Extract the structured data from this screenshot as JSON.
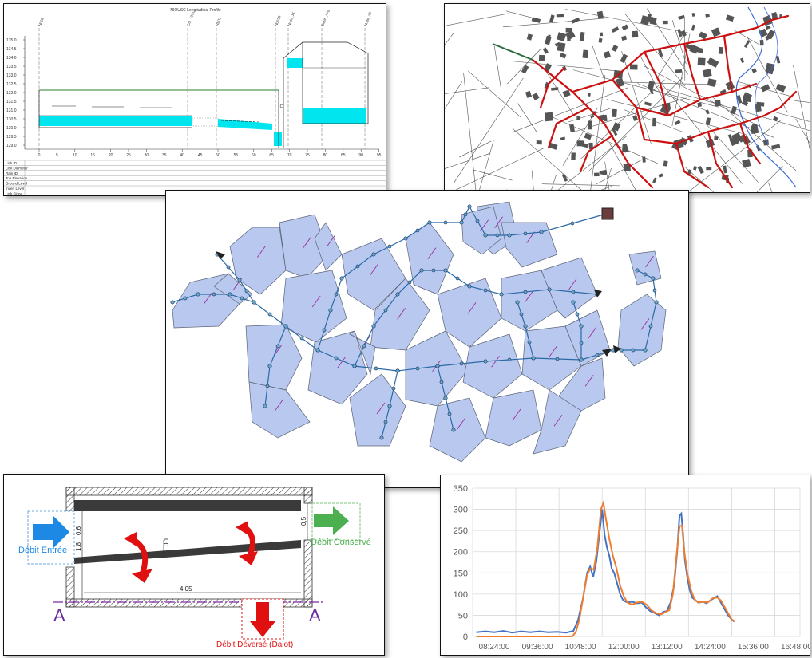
{
  "profile": {
    "title": "NIOUSC Longitudinal Profile",
    "y_ticks": [
      "135.0",
      "134.5",
      "134.0",
      "133.5",
      "133.0",
      "132.5",
      "132.0",
      "131.5",
      "131.0",
      "130.5",
      "130.0",
      "129.5",
      "129.0"
    ],
    "x_ticks": [
      "0",
      "5",
      "10",
      "15",
      "20",
      "25",
      "30",
      "35",
      "40",
      "45",
      "50",
      "55",
      "60",
      "65",
      "70",
      "75",
      "80",
      "85",
      "90",
      "95"
    ],
    "node_labels": [
      "N002",
      "CO_1001",
      "RB01",
      "N002B",
      "Node_J4",
      "Basin_Ang",
      "Node_23"
    ],
    "row_labels": [
      "Link ID",
      "Link Diameter",
      "Rain ID",
      "Top Elevation",
      "Ground Level",
      "Invert Level",
      "Link Slope"
    ]
  },
  "network": {
    "description_none": ""
  },
  "weir": {
    "label_in": "Débit Entrée",
    "label_out": "Débit Conservé",
    "label_overflow": "Débit Déversé (Dalot)",
    "section_left": "A",
    "section_right": "A",
    "dim_length": "4,05",
    "dim_left_top": "0,6",
    "dim_left_bottom": "1,8",
    "dim_mid": "0,1",
    "dim_right": "0,5"
  },
  "chart_data": {
    "type": "line",
    "ylim": [
      0,
      350
    ],
    "y_ticks": [
      "350",
      "300",
      "250",
      "200",
      "150",
      "100",
      "50",
      "0"
    ],
    "x_tick_labels": [
      "08:24:00",
      "09:36:00",
      "10:48:00",
      "12:00:00",
      "13:12:00",
      "14:24:00",
      "15:36:00",
      "16:48:00"
    ],
    "x_minutes": [
      504,
      576,
      648,
      720,
      792,
      864,
      936,
      1008
    ],
    "xlim_minutes": [
      504,
      1050
    ],
    "series": [
      {
        "color": "#4472c4",
        "points": [
          [
            510,
            10
          ],
          [
            525,
            12
          ],
          [
            540,
            10
          ],
          [
            555,
            13
          ],
          [
            570,
            9
          ],
          [
            585,
            12
          ],
          [
            600,
            10
          ],
          [
            615,
            12
          ],
          [
            630,
            10
          ],
          [
            645,
            11
          ],
          [
            660,
            9
          ],
          [
            672,
            13
          ],
          [
            680,
            40
          ],
          [
            688,
            90
          ],
          [
            695,
            150
          ],
          [
            700,
            165
          ],
          [
            705,
            140
          ],
          [
            710,
            175
          ],
          [
            716,
            250
          ],
          [
            720,
            300
          ],
          [
            724,
            240
          ],
          [
            728,
            210
          ],
          [
            732,
            190
          ],
          [
            736,
            160
          ],
          [
            740,
            150
          ],
          [
            745,
            125
          ],
          [
            750,
            100
          ],
          [
            755,
            85
          ],
          [
            762,
            80
          ],
          [
            770,
            82
          ],
          [
            778,
            78
          ],
          [
            786,
            80
          ],
          [
            792,
            70
          ],
          [
            800,
            60
          ],
          [
            808,
            55
          ],
          [
            815,
            50
          ],
          [
            822,
            58
          ],
          [
            828,
            60
          ],
          [
            834,
            80
          ],
          [
            840,
            120
          ],
          [
            845,
            200
          ],
          [
            849,
            285
          ],
          [
            852,
            290
          ],
          [
            855,
            240
          ],
          [
            858,
            180
          ],
          [
            862,
            140
          ],
          [
            866,
            110
          ],
          [
            870,
            92
          ],
          [
            876,
            85
          ],
          [
            882,
            80
          ],
          [
            888,
            82
          ],
          [
            894,
            78
          ],
          [
            900,
            85
          ],
          [
            906,
            90
          ],
          [
            912,
            95
          ],
          [
            918,
            80
          ],
          [
            924,
            65
          ],
          [
            930,
            50
          ],
          [
            936,
            40
          ],
          [
            940,
            35
          ]
        ]
      },
      {
        "color": "#ed7d31",
        "points": [
          [
            510,
            0
          ],
          [
            560,
            0
          ],
          [
            600,
            0
          ],
          [
            640,
            0
          ],
          [
            670,
            0
          ],
          [
            676,
            10
          ],
          [
            682,
            40
          ],
          [
            688,
            90
          ],
          [
            695,
            145
          ],
          [
            700,
            160
          ],
          [
            706,
            158
          ],
          [
            712,
            210
          ],
          [
            718,
            300
          ],
          [
            722,
            315
          ],
          [
            726,
            280
          ],
          [
            732,
            230
          ],
          [
            738,
            190
          ],
          [
            744,
            160
          ],
          [
            750,
            120
          ],
          [
            756,
            95
          ],
          [
            762,
            80
          ],
          [
            770,
            75
          ],
          [
            778,
            80
          ],
          [
            786,
            82
          ],
          [
            794,
            75
          ],
          [
            802,
            62
          ],
          [
            810,
            55
          ],
          [
            818,
            52
          ],
          [
            826,
            58
          ],
          [
            832,
            62
          ],
          [
            838,
            100
          ],
          [
            844,
            190
          ],
          [
            849,
            260
          ],
          [
            853,
            262
          ],
          [
            857,
            200
          ],
          [
            862,
            150
          ],
          [
            868,
            110
          ],
          [
            874,
            88
          ],
          [
            880,
            80
          ],
          [
            888,
            82
          ],
          [
            896,
            80
          ],
          [
            904,
            90
          ],
          [
            912,
            92
          ],
          [
            918,
            85
          ],
          [
            924,
            70
          ],
          [
            930,
            55
          ],
          [
            936,
            40
          ],
          [
            942,
            35
          ]
        ]
      }
    ]
  }
}
